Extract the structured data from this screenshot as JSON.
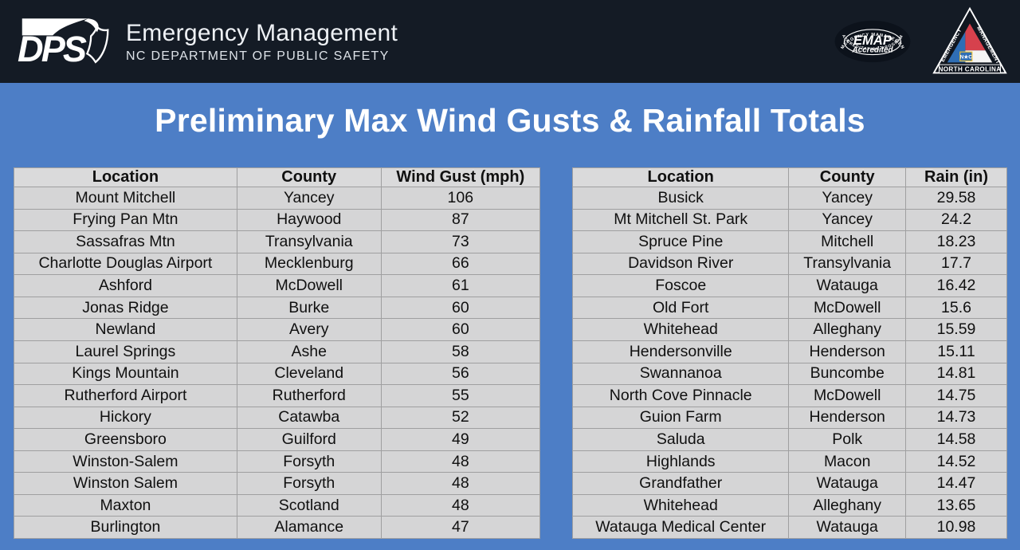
{
  "header": {
    "dps_logo": "DPS",
    "brand_title": "Emergency Management",
    "brand_subtitle": "NC DEPARTMENT OF PUBLIC SAFETY",
    "emap_badge": {
      "arc_top": "EMERGENCY MANAGEMENT",
      "name": "EMAP",
      "accredited": "Accredited",
      "arc_bottom": "ACCREDITATION PROGRAM"
    },
    "ncem_badge": {
      "left_edge": "EMERGENCY",
      "right_edge": "MANAGEMENT",
      "bottom_band": "NORTH CAROLINA",
      "center_emblem": "N★C"
    }
  },
  "title": "Preliminary Max Wind Gusts & Rainfall Totals",
  "wind_table": {
    "headers": [
      "Location",
      "County",
      "Wind Gust (mph)"
    ],
    "rows": [
      [
        "Mount Mitchell",
        "Yancey",
        "106"
      ],
      [
        "Frying Pan Mtn",
        "Haywood",
        "87"
      ],
      [
        "Sassafras Mtn",
        "Transylvania",
        "73"
      ],
      [
        "Charlotte Douglas Airport",
        "Mecklenburg",
        "66"
      ],
      [
        "Ashford",
        "McDowell",
        "61"
      ],
      [
        "Jonas Ridge",
        "Burke",
        "60"
      ],
      [
        "Newland",
        "Avery",
        "60"
      ],
      [
        "Laurel Springs",
        "Ashe",
        "58"
      ],
      [
        "Kings Mountain",
        "Cleveland",
        "56"
      ],
      [
        "Rutherford Airport",
        "Rutherford",
        "55"
      ],
      [
        "Hickory",
        "Catawba",
        "52"
      ],
      [
        "Greensboro",
        "Guilford",
        "49"
      ],
      [
        "Winston-Salem",
        "Forsyth",
        "48"
      ],
      [
        "Winston Salem",
        "Forsyth",
        "48"
      ],
      [
        "Maxton",
        "Scotland",
        "48"
      ],
      [
        "Burlington",
        "Alamance",
        "47"
      ]
    ]
  },
  "rain_table": {
    "headers": [
      "Location",
      "County",
      "Rain (in)"
    ],
    "rows": [
      [
        "Busick",
        "Yancey",
        "29.58"
      ],
      [
        "Mt Mitchell St. Park",
        "Yancey",
        "24.2"
      ],
      [
        "Spruce Pine",
        "Mitchell",
        "18.23"
      ],
      [
        "Davidson River",
        "Transylvania",
        "17.7"
      ],
      [
        "Foscoe",
        "Watauga",
        "16.42"
      ],
      [
        "Old Fort",
        "McDowell",
        "15.6"
      ],
      [
        "Whitehead",
        "Alleghany",
        "15.59"
      ],
      [
        "Hendersonville",
        "Henderson",
        "15.11"
      ],
      [
        "Swannanoa",
        "Buncombe",
        "14.81"
      ],
      [
        "North Cove Pinnacle",
        "McDowell",
        "14.75"
      ],
      [
        "Guion Farm",
        "Henderson",
        "14.73"
      ],
      [
        "Saluda",
        "Polk",
        "14.58"
      ],
      [
        "Highlands",
        "Macon",
        "14.52"
      ],
      [
        "Grandfather",
        "Watauga",
        "14.47"
      ],
      [
        "Whitehead",
        "Alleghany",
        "13.65"
      ],
      [
        "Watauga Medical Center",
        "Watauga",
        "10.98"
      ]
    ]
  },
  "colors": {
    "top_bar": "#141b25",
    "background": "#4d7ec6",
    "table_cell": "#d5d5d6",
    "table_header": "#dadadb",
    "table_border": "#9f9fa0",
    "title_text": "#ffffff",
    "ncem_blue": "#2f6eb5",
    "ncem_red": "#d6414d",
    "emblem_gold": "#f0c030"
  }
}
